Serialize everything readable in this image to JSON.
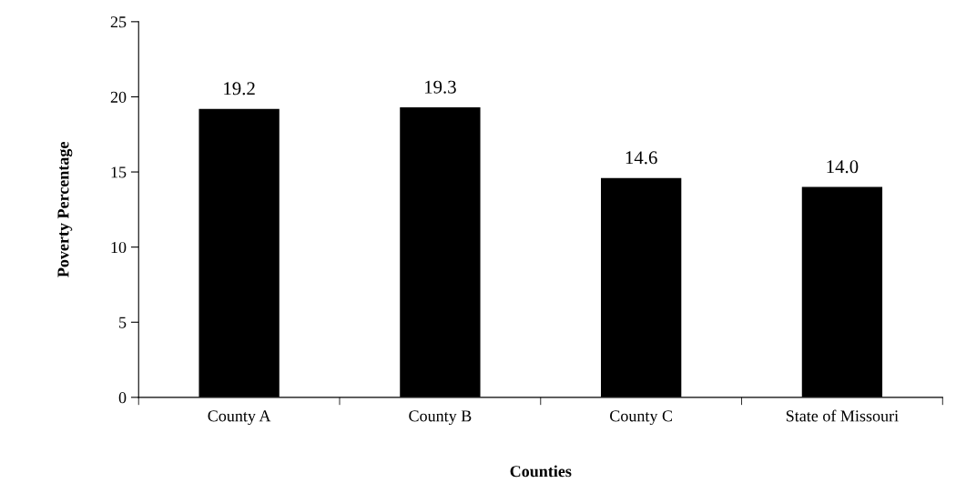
{
  "chart_data": {
    "type": "bar",
    "xlabel": "Counties",
    "ylabel": "Poverty Percentage",
    "categories": [
      "County A",
      "County B",
      "County C",
      "State of Missouri"
    ],
    "values": [
      19.2,
      19.3,
      14.6,
      14.0
    ],
    "value_labels": [
      "19.2",
      "19.3",
      "14.6",
      "14.0"
    ],
    "color": "#000000",
    "ylim": [
      0,
      25
    ],
    "yticks": [
      0,
      5,
      10,
      15,
      20,
      25
    ],
    "grid": false,
    "legend": false
  }
}
